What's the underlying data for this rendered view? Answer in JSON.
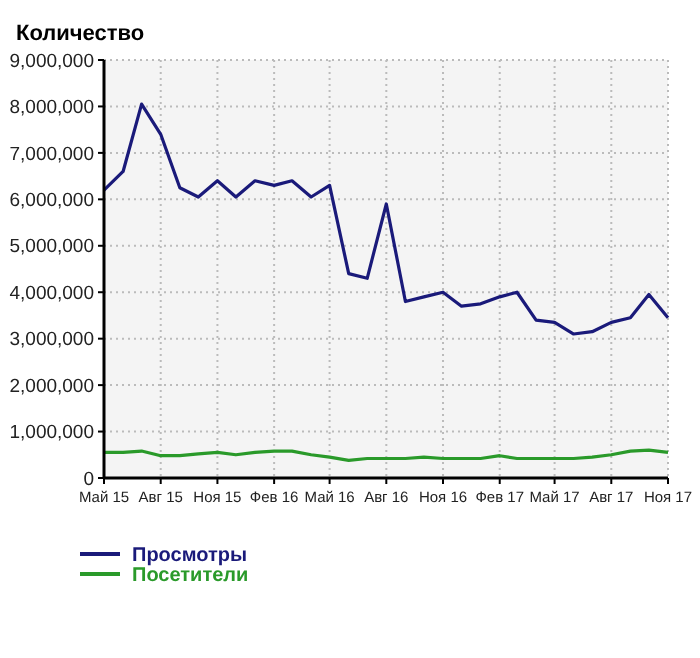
{
  "chart_data": {
    "type": "line",
    "ylabel": "Количество",
    "x": [
      "2015-05",
      "2015-06",
      "2015-07",
      "2015-08",
      "2015-09",
      "2015-10",
      "2015-11",
      "2015-12",
      "2016-01",
      "2016-02",
      "2016-03",
      "2016-04",
      "2016-05",
      "2016-06",
      "2016-07",
      "2016-08",
      "2016-09",
      "2016-10",
      "2016-11",
      "2016-12",
      "2017-01",
      "2017-02",
      "2017-03",
      "2017-04",
      "2017-05",
      "2017-06",
      "2017-07",
      "2017-08",
      "2017-09",
      "2017-10",
      "2017-11"
    ],
    "series": [
      {
        "name": "Просмотры",
        "color": "#1a1a7a",
        "values": [
          6200000,
          6600000,
          8050000,
          7400000,
          6250000,
          6050000,
          6400000,
          6050000,
          6400000,
          6300000,
          6400000,
          6050000,
          6300000,
          4400000,
          4300000,
          5900000,
          3800000,
          3900000,
          4000000,
          3700000,
          3750000,
          3900000,
          4000000,
          3400000,
          3350000,
          3100000,
          3150000,
          3350000,
          3450000,
          3950000,
          3450000
        ]
      },
      {
        "name": "Посетители",
        "color": "#2a9a2a",
        "values": [
          550000,
          550000,
          580000,
          480000,
          480000,
          520000,
          550000,
          500000,
          550000,
          580000,
          580000,
          500000,
          450000,
          380000,
          420000,
          420000,
          420000,
          450000,
          420000,
          420000,
          420000,
          480000,
          420000,
          420000,
          420000,
          420000,
          450000,
          500000,
          580000,
          600000,
          550000
        ]
      }
    ],
    "xlim": [
      "2015-05",
      "2017-11"
    ],
    "xticks": [
      {
        "value": "2015-05",
        "label": "Май 15"
      },
      {
        "value": "2015-08",
        "label": "Авг 15"
      },
      {
        "value": "2015-11",
        "label": "Ноя 15"
      },
      {
        "value": "2016-02",
        "label": "Фев 16"
      },
      {
        "value": "2016-05",
        "label": "Май 16"
      },
      {
        "value": "2016-08",
        "label": "Авг 16"
      },
      {
        "value": "2016-11",
        "label": "Ноя 16"
      },
      {
        "value": "2017-02",
        "label": "Фев 17"
      },
      {
        "value": "2017-05",
        "label": "Май 17"
      },
      {
        "value": "2017-08",
        "label": "Авг 17"
      },
      {
        "value": "2017-11",
        "label": "Ноя 17"
      }
    ],
    "ylim": [
      0,
      9000000
    ],
    "yticks": [
      {
        "value": 0,
        "label": "0"
      },
      {
        "value": 1000000,
        "label": "1,000,000"
      },
      {
        "value": 2000000,
        "label": "2,000,000"
      },
      {
        "value": 3000000,
        "label": "3,000,000"
      },
      {
        "value": 4000000,
        "label": "4,000,000"
      },
      {
        "value": 5000000,
        "label": "5,000,000"
      },
      {
        "value": 6000000,
        "label": "6,000,000"
      },
      {
        "value": 7000000,
        "label": "7,000,000"
      },
      {
        "value": 8000000,
        "label": "8,000,000"
      },
      {
        "value": 9000000,
        "label": "9,000,000"
      }
    ],
    "grid": true,
    "legend": "bottom left",
    "marker": "none",
    "line_style": "solid"
  }
}
